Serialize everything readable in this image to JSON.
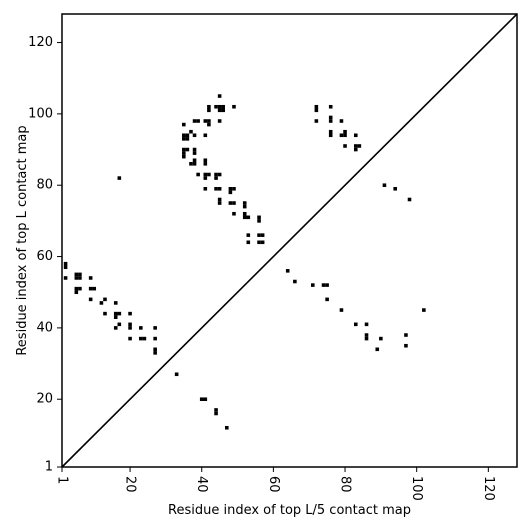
{
  "chart_data": {
    "type": "scatter",
    "marker": "square",
    "xlabel": "Residue index of top L/5 contact map",
    "ylabel": "Residue index of top L contact map",
    "xlim": [
      1,
      128
    ],
    "ylim": [
      1,
      128
    ],
    "xticks": [
      1,
      20,
      40,
      60,
      80,
      100,
      120
    ],
    "yticks": [
      1,
      20,
      40,
      60,
      80,
      100,
      120
    ],
    "xtick_rotation": -90,
    "diagonal": true,
    "grid": false,
    "colors": {
      "marker": "#000000",
      "axis": "#000000",
      "background": "#ffffff"
    },
    "series": [
      {
        "points": [
          [
            2,
            58
          ],
          [
            2,
            57
          ],
          [
            2,
            54
          ],
          [
            5,
            55
          ],
          [
            5,
            54
          ],
          [
            5,
            51
          ],
          [
            5,
            50
          ],
          [
            6,
            55
          ],
          [
            6,
            54
          ],
          [
            6,
            51
          ],
          [
            9,
            54
          ],
          [
            9,
            51
          ],
          [
            9,
            48
          ],
          [
            10,
            51
          ],
          [
            12,
            47
          ],
          [
            13,
            48
          ],
          [
            13,
            44
          ],
          [
            16,
            47
          ],
          [
            16,
            44
          ],
          [
            16,
            43
          ],
          [
            16,
            40
          ],
          [
            17,
            44
          ],
          [
            17,
            41
          ],
          [
            17,
            82
          ],
          [
            20,
            44
          ],
          [
            20,
            41
          ],
          [
            20,
            40
          ],
          [
            20,
            37
          ],
          [
            23,
            40
          ],
          [
            23,
            37
          ],
          [
            24,
            37
          ],
          [
            27,
            40
          ],
          [
            27,
            37
          ],
          [
            27,
            34
          ],
          [
            27,
            33
          ],
          [
            33,
            27
          ],
          [
            35,
            97
          ],
          [
            35,
            94
          ],
          [
            35,
            93
          ],
          [
            35,
            90
          ],
          [
            35,
            89
          ],
          [
            35,
            88
          ],
          [
            36,
            94
          ],
          [
            36,
            93
          ],
          [
            36,
            90
          ],
          [
            37,
            95
          ],
          [
            38,
            98
          ],
          [
            38,
            94
          ],
          [
            38,
            90
          ],
          [
            38,
            89
          ],
          [
            38,
            87
          ],
          [
            38,
            86
          ],
          [
            37,
            86
          ],
          [
            39,
            98
          ],
          [
            39,
            83
          ],
          [
            41,
            98
          ],
          [
            41,
            94
          ],
          [
            41,
            87
          ],
          [
            41,
            86
          ],
          [
            41,
            83
          ],
          [
            41,
            82
          ],
          [
            41,
            79
          ],
          [
            42,
            102
          ],
          [
            42,
            101
          ],
          [
            42,
            98
          ],
          [
            42,
            97
          ],
          [
            42,
            83
          ],
          [
            44,
            102
          ],
          [
            44,
            83
          ],
          [
            44,
            82
          ],
          [
            44,
            79
          ],
          [
            45,
            105
          ],
          [
            45,
            102
          ],
          [
            45,
            101
          ],
          [
            45,
            98
          ],
          [
            45,
            83
          ],
          [
            45,
            79
          ],
          [
            45,
            76
          ],
          [
            45,
            75
          ],
          [
            46,
            102
          ],
          [
            46,
            101
          ],
          [
            48,
            79
          ],
          [
            48,
            78
          ],
          [
            48,
            75
          ],
          [
            49,
            102
          ],
          [
            49,
            79
          ],
          [
            49,
            75
          ],
          [
            49,
            72
          ],
          [
            52,
            75
          ],
          [
            52,
            74
          ],
          [
            52,
            72
          ],
          [
            52,
            71
          ],
          [
            53,
            71
          ],
          [
            53,
            66
          ],
          [
            53,
            64
          ],
          [
            56,
            71
          ],
          [
            56,
            70
          ],
          [
            56,
            66
          ],
          [
            56,
            64
          ],
          [
            57,
            66
          ],
          [
            57,
            64
          ],
          [
            40,
            20
          ],
          [
            41,
            20
          ],
          [
            44,
            17
          ],
          [
            44,
            16
          ],
          [
            47,
            12
          ],
          [
            64,
            56
          ],
          [
            66,
            53
          ],
          [
            71,
            52
          ],
          [
            74,
            52
          ],
          [
            75,
            52
          ],
          [
            75,
            48
          ],
          [
            72,
            102
          ],
          [
            72,
            101
          ],
          [
            72,
            98
          ],
          [
            76,
            102
          ],
          [
            76,
            99
          ],
          [
            76,
            98
          ],
          [
            76,
            95
          ],
          [
            76,
            94
          ],
          [
            79,
            98
          ],
          [
            79,
            94
          ],
          [
            80,
            95
          ],
          [
            80,
            94
          ],
          [
            80,
            91
          ],
          [
            83,
            94
          ],
          [
            83,
            91
          ],
          [
            83,
            90
          ],
          [
            84,
            91
          ],
          [
            79,
            45
          ],
          [
            83,
            41
          ],
          [
            86,
            41
          ],
          [
            86,
            38
          ],
          [
            86,
            37
          ],
          [
            89,
            34
          ],
          [
            90,
            37
          ],
          [
            91,
            80
          ],
          [
            94,
            79
          ],
          [
            97,
            38
          ],
          [
            97,
            35
          ],
          [
            98,
            76
          ],
          [
            102,
            45
          ]
        ]
      }
    ]
  }
}
